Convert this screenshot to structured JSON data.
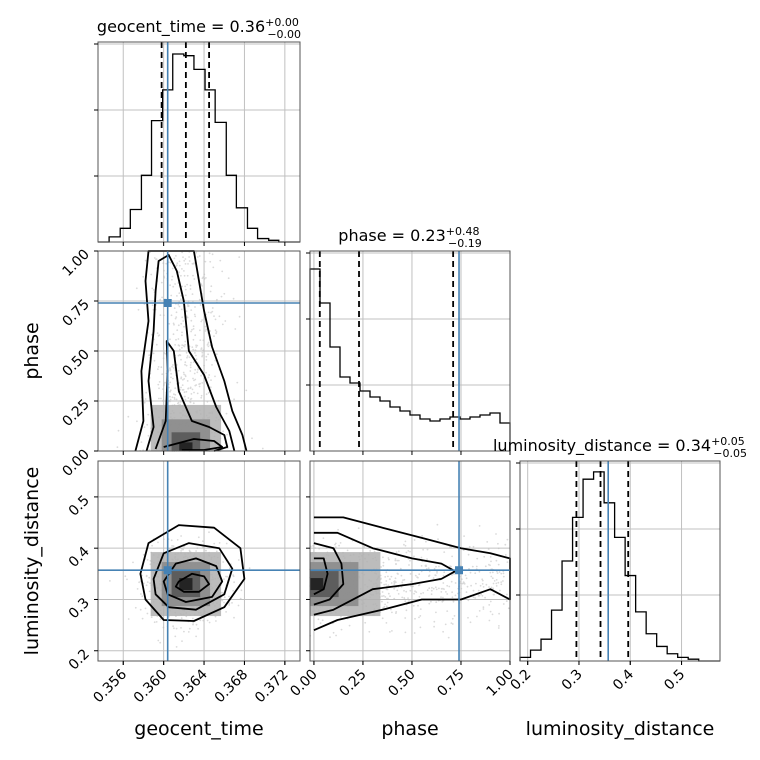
{
  "chart_data": {
    "type": "corner",
    "parameters": [
      "geocent_time",
      "phase",
      "luminosity_distance"
    ],
    "colors": {
      "truth": "#4682b4",
      "histogram": "#000000",
      "quantile": "#000000",
      "grid": "#c0c0c0",
      "scatter": "#bdbdbd"
    },
    "grid": true,
    "diagonal": [
      {
        "parameter": "geocent_time",
        "title_main": "geocent_time = 0.36",
        "title_sup": "+0.00",
        "title_sub": "−0.00",
        "xlim": [
          0.3535,
          0.3735
        ],
        "ylim": [
          0,
          1.17
        ],
        "bin_edges": [
          0.3535,
          0.3546,
          0.3557,
          0.3567,
          0.3578,
          0.3588,
          0.3599,
          0.3609,
          0.362,
          0.363,
          0.3641,
          0.3651,
          0.3662,
          0.3672,
          0.3683,
          0.3693,
          0.3704,
          0.3714,
          0.3725,
          0.3735
        ],
        "counts": [
          0.0,
          0.03,
          0.08,
          0.19,
          0.39,
          0.71,
          0.89,
          1.1,
          1.09,
          1.01,
          0.89,
          0.7,
          0.39,
          0.2,
          0.08,
          0.02,
          0.01,
          0.0,
          0.0
        ],
        "quantiles": [
          0.3598,
          0.3622,
          0.3645
        ],
        "truth": 0.3604,
        "xticks": [
          0.356,
          0.36,
          0.364,
          0.368,
          0.372
        ],
        "xticklabels": [
          "0.356",
          "0.360",
          "0.364",
          "0.368",
          "0.372"
        ]
      },
      {
        "parameter": "phase",
        "title_main": "phase = 0.23",
        "title_sup": "+0.48",
        "title_sub": "−0.19",
        "xlim": [
          -0.02,
          1.0
        ],
        "ylim": [
          0,
          1.0
        ],
        "bin_edges": [
          -0.02,
          0.031,
          0.082,
          0.133,
          0.184,
          0.235,
          0.286,
          0.337,
          0.388,
          0.439,
          0.49,
          0.541,
          0.592,
          0.643,
          0.694,
          0.745,
          0.796,
          0.847,
          0.898,
          0.949,
          1.0
        ],
        "counts": [
          0.91,
          0.74,
          0.52,
          0.37,
          0.34,
          0.3,
          0.27,
          0.25,
          0.22,
          0.2,
          0.18,
          0.16,
          0.15,
          0.16,
          0.17,
          0.16,
          0.17,
          0.18,
          0.19,
          0.14
        ],
        "quantiles": [
          0.03,
          0.23,
          0.71
        ],
        "truth": 0.74,
        "xticks": [
          0.0,
          0.25,
          0.5,
          0.75,
          1.0
        ],
        "xticklabels": [
          "0.00",
          "0.25",
          "0.50",
          "0.75",
          "1.00"
        ]
      },
      {
        "parameter": "luminosity_distance",
        "title_main": "luminosity_distance = 0.34",
        "title_sup": "+0.05",
        "title_sub": "−0.05",
        "xlim": [
          0.185,
          0.575
        ],
        "ylim": [
          0,
          1.1
        ],
        "bin_edges": [
          0.185,
          0.2055,
          0.226,
          0.2465,
          0.267,
          0.2875,
          0.308,
          0.3285,
          0.349,
          0.3695,
          0.39,
          0.4105,
          0.431,
          0.4515,
          0.472,
          0.4925,
          0.513,
          0.5335,
          0.554,
          0.575
        ],
        "counts": [
          0.02,
          0.06,
          0.12,
          0.28,
          0.55,
          0.79,
          1.0,
          1.04,
          0.87,
          0.68,
          0.47,
          0.27,
          0.15,
          0.08,
          0.04,
          0.02,
          0.01,
          0.0,
          0.0
        ],
        "quantiles": [
          0.295,
          0.342,
          0.396
        ],
        "truth": 0.357,
        "xticks": [
          0.2,
          0.3,
          0.4,
          0.5
        ],
        "xticklabels": [
          "0.2",
          "0.3",
          "0.4",
          "0.5"
        ]
      }
    ],
    "pairs": [
      {
        "x": "geocent_time",
        "y": "phase",
        "truth": [
          0.3604,
          0.74
        ],
        "yticks": [
          0.0,
          0.25,
          0.5,
          0.75,
          1.0
        ],
        "yticklabels": [
          "0.00",
          "0.25",
          "0.50",
          "0.75",
          "1.00"
        ],
        "contours": [
          [
            [
              0.36,
              0.02
            ],
            [
              0.3615,
              0.04
            ],
            [
              0.363,
              0.06
            ],
            [
              0.365,
              0.05
            ],
            [
              0.3658,
              0.02
            ],
            [
              0.364,
              0.005
            ],
            [
              0.3618,
              0.005
            ]
          ],
          [
            [
              0.3592,
              0.01
            ],
            [
              0.3602,
              0.15
            ],
            [
              0.3604,
              0.4
            ],
            [
              0.3603,
              0.55
            ],
            [
              0.361,
              0.5
            ],
            [
              0.3615,
              0.3
            ],
            [
              0.3628,
              0.15
            ],
            [
              0.3645,
              0.12
            ],
            [
              0.366,
              0.08
            ],
            [
              0.3663,
              0.02
            ],
            [
              0.365,
              0.0
            ]
          ],
          [
            [
              0.3583,
              0.0
            ],
            [
              0.359,
              0.12
            ],
            [
              0.3585,
              0.35
            ],
            [
              0.359,
              0.6
            ],
            [
              0.3592,
              0.8
            ],
            [
              0.3595,
              0.95
            ],
            [
              0.3605,
              0.98
            ],
            [
              0.3613,
              0.9
            ],
            [
              0.362,
              0.75
            ],
            [
              0.3625,
              0.5
            ],
            [
              0.364,
              0.38
            ],
            [
              0.3652,
              0.22
            ],
            [
              0.3665,
              0.1
            ],
            [
              0.367,
              0.0
            ]
          ],
          [
            [
              0.3572,
              0.0
            ],
            [
              0.358,
              0.15
            ],
            [
              0.3578,
              0.4
            ],
            [
              0.3585,
              0.65
            ],
            [
              0.3582,
              0.85
            ],
            [
              0.3585,
              1.0
            ],
            [
              0.363,
              1.0
            ],
            [
              0.3635,
              0.85
            ],
            [
              0.364,
              0.7
            ],
            [
              0.3648,
              0.52
            ],
            [
              0.366,
              0.35
            ],
            [
              0.3668,
              0.2
            ],
            [
              0.3678,
              0.08
            ],
            [
              0.3682,
              0.0
            ]
          ]
        ],
        "density_peak": [
          0.3622,
          0.02
        ]
      },
      {
        "x": "geocent_time",
        "y": "luminosity_distance",
        "truth": [
          0.3604,
          0.357
        ],
        "yticks": [
          0.2,
          0.3,
          0.4,
          0.5
        ],
        "yticklabels": [
          "0.2",
          "0.3",
          "0.4",
          "0.5"
        ],
        "contours": [
          [
            [
              0.3615,
              0.335
            ],
            [
              0.3628,
              0.35
            ],
            [
              0.364,
              0.345
            ],
            [
              0.3645,
              0.33
            ],
            [
              0.3635,
              0.315
            ],
            [
              0.362,
              0.315
            ],
            [
              0.3612,
              0.325
            ]
          ],
          [
            [
              0.36,
              0.335
            ],
            [
              0.3612,
              0.37
            ],
            [
              0.3632,
              0.38
            ],
            [
              0.3652,
              0.365
            ],
            [
              0.3658,
              0.335
            ],
            [
              0.3648,
              0.305
            ],
            [
              0.3622,
              0.295
            ],
            [
              0.3604,
              0.31
            ]
          ],
          [
            [
              0.359,
              0.34
            ],
            [
              0.36,
              0.39
            ],
            [
              0.3625,
              0.41
            ],
            [
              0.3655,
              0.4
            ],
            [
              0.3668,
              0.36
            ],
            [
              0.366,
              0.31
            ],
            [
              0.3632,
              0.28
            ],
            [
              0.3605,
              0.285
            ],
            [
              0.3592,
              0.31
            ]
          ],
          [
            [
              0.3577,
              0.35
            ],
            [
              0.3585,
              0.41
            ],
            [
              0.3615,
              0.445
            ],
            [
              0.365,
              0.44
            ],
            [
              0.3676,
              0.4
            ],
            [
              0.368,
              0.34
            ],
            [
              0.366,
              0.285
            ],
            [
              0.363,
              0.258
            ],
            [
              0.36,
              0.26
            ],
            [
              0.3582,
              0.3
            ]
          ]
        ],
        "density_peak": [
          0.3622,
          0.33
        ]
      },
      {
        "x": "phase",
        "y": "luminosity_distance",
        "truth": [
          0.74,
          0.357
        ],
        "yticks": [
          0.2,
          0.3,
          0.4,
          0.5
        ],
        "yticklabels": [
          "0.2",
          "0.3",
          "0.4",
          "0.5"
        ],
        "contours": [
          [
            [
              0.0,
              0.31
            ],
            [
              0.05,
              0.32
            ],
            [
              0.07,
              0.35
            ],
            [
              0.05,
              0.38
            ],
            [
              0.0,
              0.38
            ]
          ],
          [
            [
              0.0,
              0.29
            ],
            [
              0.08,
              0.3
            ],
            [
              0.15,
              0.33
            ],
            [
              0.14,
              0.37
            ],
            [
              0.1,
              0.4
            ],
            [
              0.0,
              0.41
            ]
          ],
          [
            [
              0.0,
              0.27
            ],
            [
              0.1,
              0.28
            ],
            [
              0.3,
              0.32
            ],
            [
              0.5,
              0.33
            ],
            [
              0.65,
              0.34
            ],
            [
              0.72,
              0.355
            ],
            [
              0.65,
              0.37
            ],
            [
              0.5,
              0.38
            ],
            [
              0.3,
              0.4
            ],
            [
              0.12,
              0.43
            ],
            [
              0.0,
              0.43
            ]
          ],
          [
            [
              0.0,
              0.24
            ],
            [
              0.12,
              0.26
            ],
            [
              0.35,
              0.28
            ],
            [
              0.55,
              0.3
            ],
            [
              0.75,
              0.3
            ],
            [
              0.9,
              0.32
            ],
            [
              1.0,
              0.3
            ],
            [
              1.0,
              0.38
            ],
            [
              0.9,
              0.39
            ],
            [
              0.75,
              0.4
            ],
            [
              0.55,
              0.42
            ],
            [
              0.35,
              0.44
            ],
            [
              0.15,
              0.46
            ],
            [
              0.0,
              0.46
            ]
          ]
        ],
        "density_peak": [
          0.0,
          0.33
        ]
      }
    ]
  }
}
